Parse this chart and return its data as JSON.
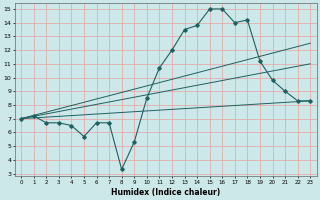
{
  "xlabel": "Humidex (Indice chaleur)",
  "background_color": "#cce8e8",
  "grid_color": "#e8a0a0",
  "line_color": "#206060",
  "xlim": [
    -0.5,
    23.5
  ],
  "ylim": [
    2.8,
    15.4
  ],
  "xticks": [
    0,
    1,
    2,
    3,
    4,
    5,
    6,
    7,
    8,
    9,
    10,
    11,
    12,
    13,
    14,
    15,
    16,
    17,
    18,
    19,
    20,
    21,
    22,
    23
  ],
  "yticks": [
    3,
    4,
    5,
    6,
    7,
    8,
    9,
    10,
    11,
    12,
    13,
    14,
    15
  ],
  "line1_x": [
    0,
    1,
    2,
    3,
    4,
    5,
    6,
    7,
    8,
    9,
    10,
    11,
    12,
    13,
    14,
    15,
    16,
    17,
    18,
    19,
    20,
    21,
    22,
    23
  ],
  "line1_y": [
    7.0,
    7.2,
    6.7,
    6.7,
    6.5,
    5.7,
    6.7,
    6.7,
    3.3,
    5.3,
    8.5,
    10.7,
    12.0,
    13.5,
    13.8,
    15.0,
    15.0,
    14.0,
    14.2,
    11.2,
    9.8,
    9.0,
    8.3,
    8.3
  ],
  "line2_x": [
    0,
    23
  ],
  "line2_y": [
    7.0,
    8.3
  ],
  "line3_x": [
    0,
    23
  ],
  "line3_y": [
    7.0,
    11.0
  ],
  "line4_x": [
    0,
    23
  ],
  "line4_y": [
    7.0,
    12.5
  ]
}
